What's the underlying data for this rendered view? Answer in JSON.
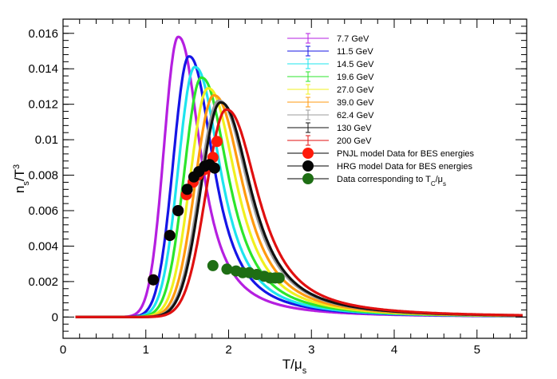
{
  "chart_data": {
    "type": "line",
    "title": "",
    "xlabel": "T/μ_s",
    "ylabel": "n_s/T^3",
    "xlim": [
      0,
      5.6
    ],
    "ylim": [
      -0.0012,
      0.0168
    ],
    "x_ticks": [
      0,
      1,
      2,
      3,
      4,
      5
    ],
    "x_tick_labels": [
      "0",
      "1",
      "2",
      "3",
      "4",
      "5"
    ],
    "y_ticks": [
      0,
      0.002,
      0.004,
      0.006,
      0.008,
      0.01,
      0.012,
      0.014,
      0.016
    ],
    "y_tick_labels": [
      "0",
      "0.002",
      "0.004",
      "0.006",
      "0.008",
      "0.01",
      "0.012",
      "0.014",
      "0.016"
    ],
    "legend_position": "top-right",
    "series": [
      {
        "name": "7.7 GeV",
        "color": "#b51fe0",
        "peak_x": 1.39,
        "peak_y": 0.0158
      },
      {
        "name": "11.5 GeV",
        "color": "#1515e6",
        "peak_x": 1.52,
        "peak_y": 0.0147
      },
      {
        "name": "14.5 GeV",
        "color": "#1ee4ee",
        "peak_x": 1.59,
        "peak_y": 0.0141
      },
      {
        "name": "19.6 GeV",
        "color": "#2ce52c",
        "peak_x": 1.67,
        "peak_y": 0.0135
      },
      {
        "name": "27.0 GeV",
        "color": "#f0f020",
        "peak_x": 1.75,
        "peak_y": 0.0129
      },
      {
        "name": "39.0 GeV",
        "color": "#ff9a10",
        "peak_x": 1.82,
        "peak_y": 0.0125
      },
      {
        "name": "62.4 GeV",
        "color": "#9b9b9b",
        "peak_x": 1.88,
        "peak_y": 0.0122
      },
      {
        "name": "130 GeV",
        "color": "#111111",
        "peak_x": 1.9,
        "peak_y": 0.0121
      },
      {
        "name": "200 GeV",
        "color": "#e01010",
        "peak_x": 1.97,
        "peak_y": 0.0117
      }
    ],
    "points": [
      {
        "name": "PNJL model Data for BES energies",
        "color": "#ff1a0a",
        "x": [
          1.09,
          1.29,
          1.39,
          1.49,
          1.57,
          1.63,
          1.7,
          1.77,
          1.81,
          1.86
        ],
        "y": [
          0.0021,
          0.0046,
          0.006,
          0.0069,
          0.0076,
          0.008,
          0.0083,
          0.0086,
          0.009,
          0.0099
        ]
      },
      {
        "name": "HRG model Data for BES energies",
        "color": "#050505",
        "x": [
          1.09,
          1.29,
          1.39,
          1.5,
          1.58,
          1.64,
          1.71,
          1.77,
          1.83
        ],
        "y": [
          0.0021,
          0.0046,
          0.006,
          0.0072,
          0.0079,
          0.0082,
          0.0085,
          0.0086,
          0.0084
        ]
      },
      {
        "name": "Data corresponding to T_C/μ_s",
        "color": "#1e6e14",
        "x": [
          1.81,
          1.98,
          2.09,
          2.17,
          2.25,
          2.34,
          2.43,
          2.5,
          2.56,
          2.61
        ],
        "y": [
          0.0029,
          0.0027,
          0.0026,
          0.0025,
          0.0025,
          0.0024,
          0.0023,
          0.0022,
          0.0022,
          0.0022
        ]
      }
    ]
  }
}
